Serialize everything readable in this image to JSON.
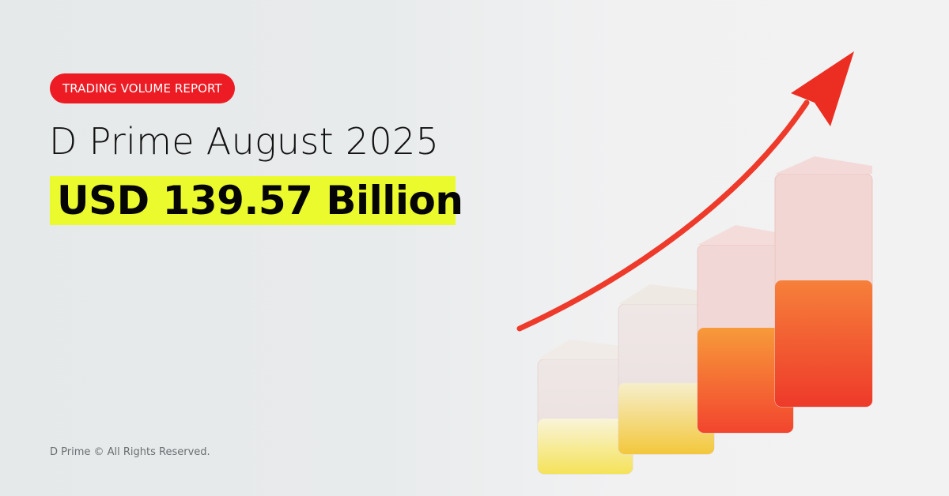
{
  "badge": {
    "label": "TRADING VOLUME REPORT",
    "color": "#ED1C24"
  },
  "headline": {
    "title": "D Prime August 2025",
    "amount": "USD 139.57 Billion",
    "highlight_color": "#EBFA2C"
  },
  "footer": {
    "copyright": "D Prime © All Rights Reserved."
  },
  "illustration": {
    "description_icons": [
      "rising-arrow-icon",
      "glass-bar-icon"
    ]
  }
}
